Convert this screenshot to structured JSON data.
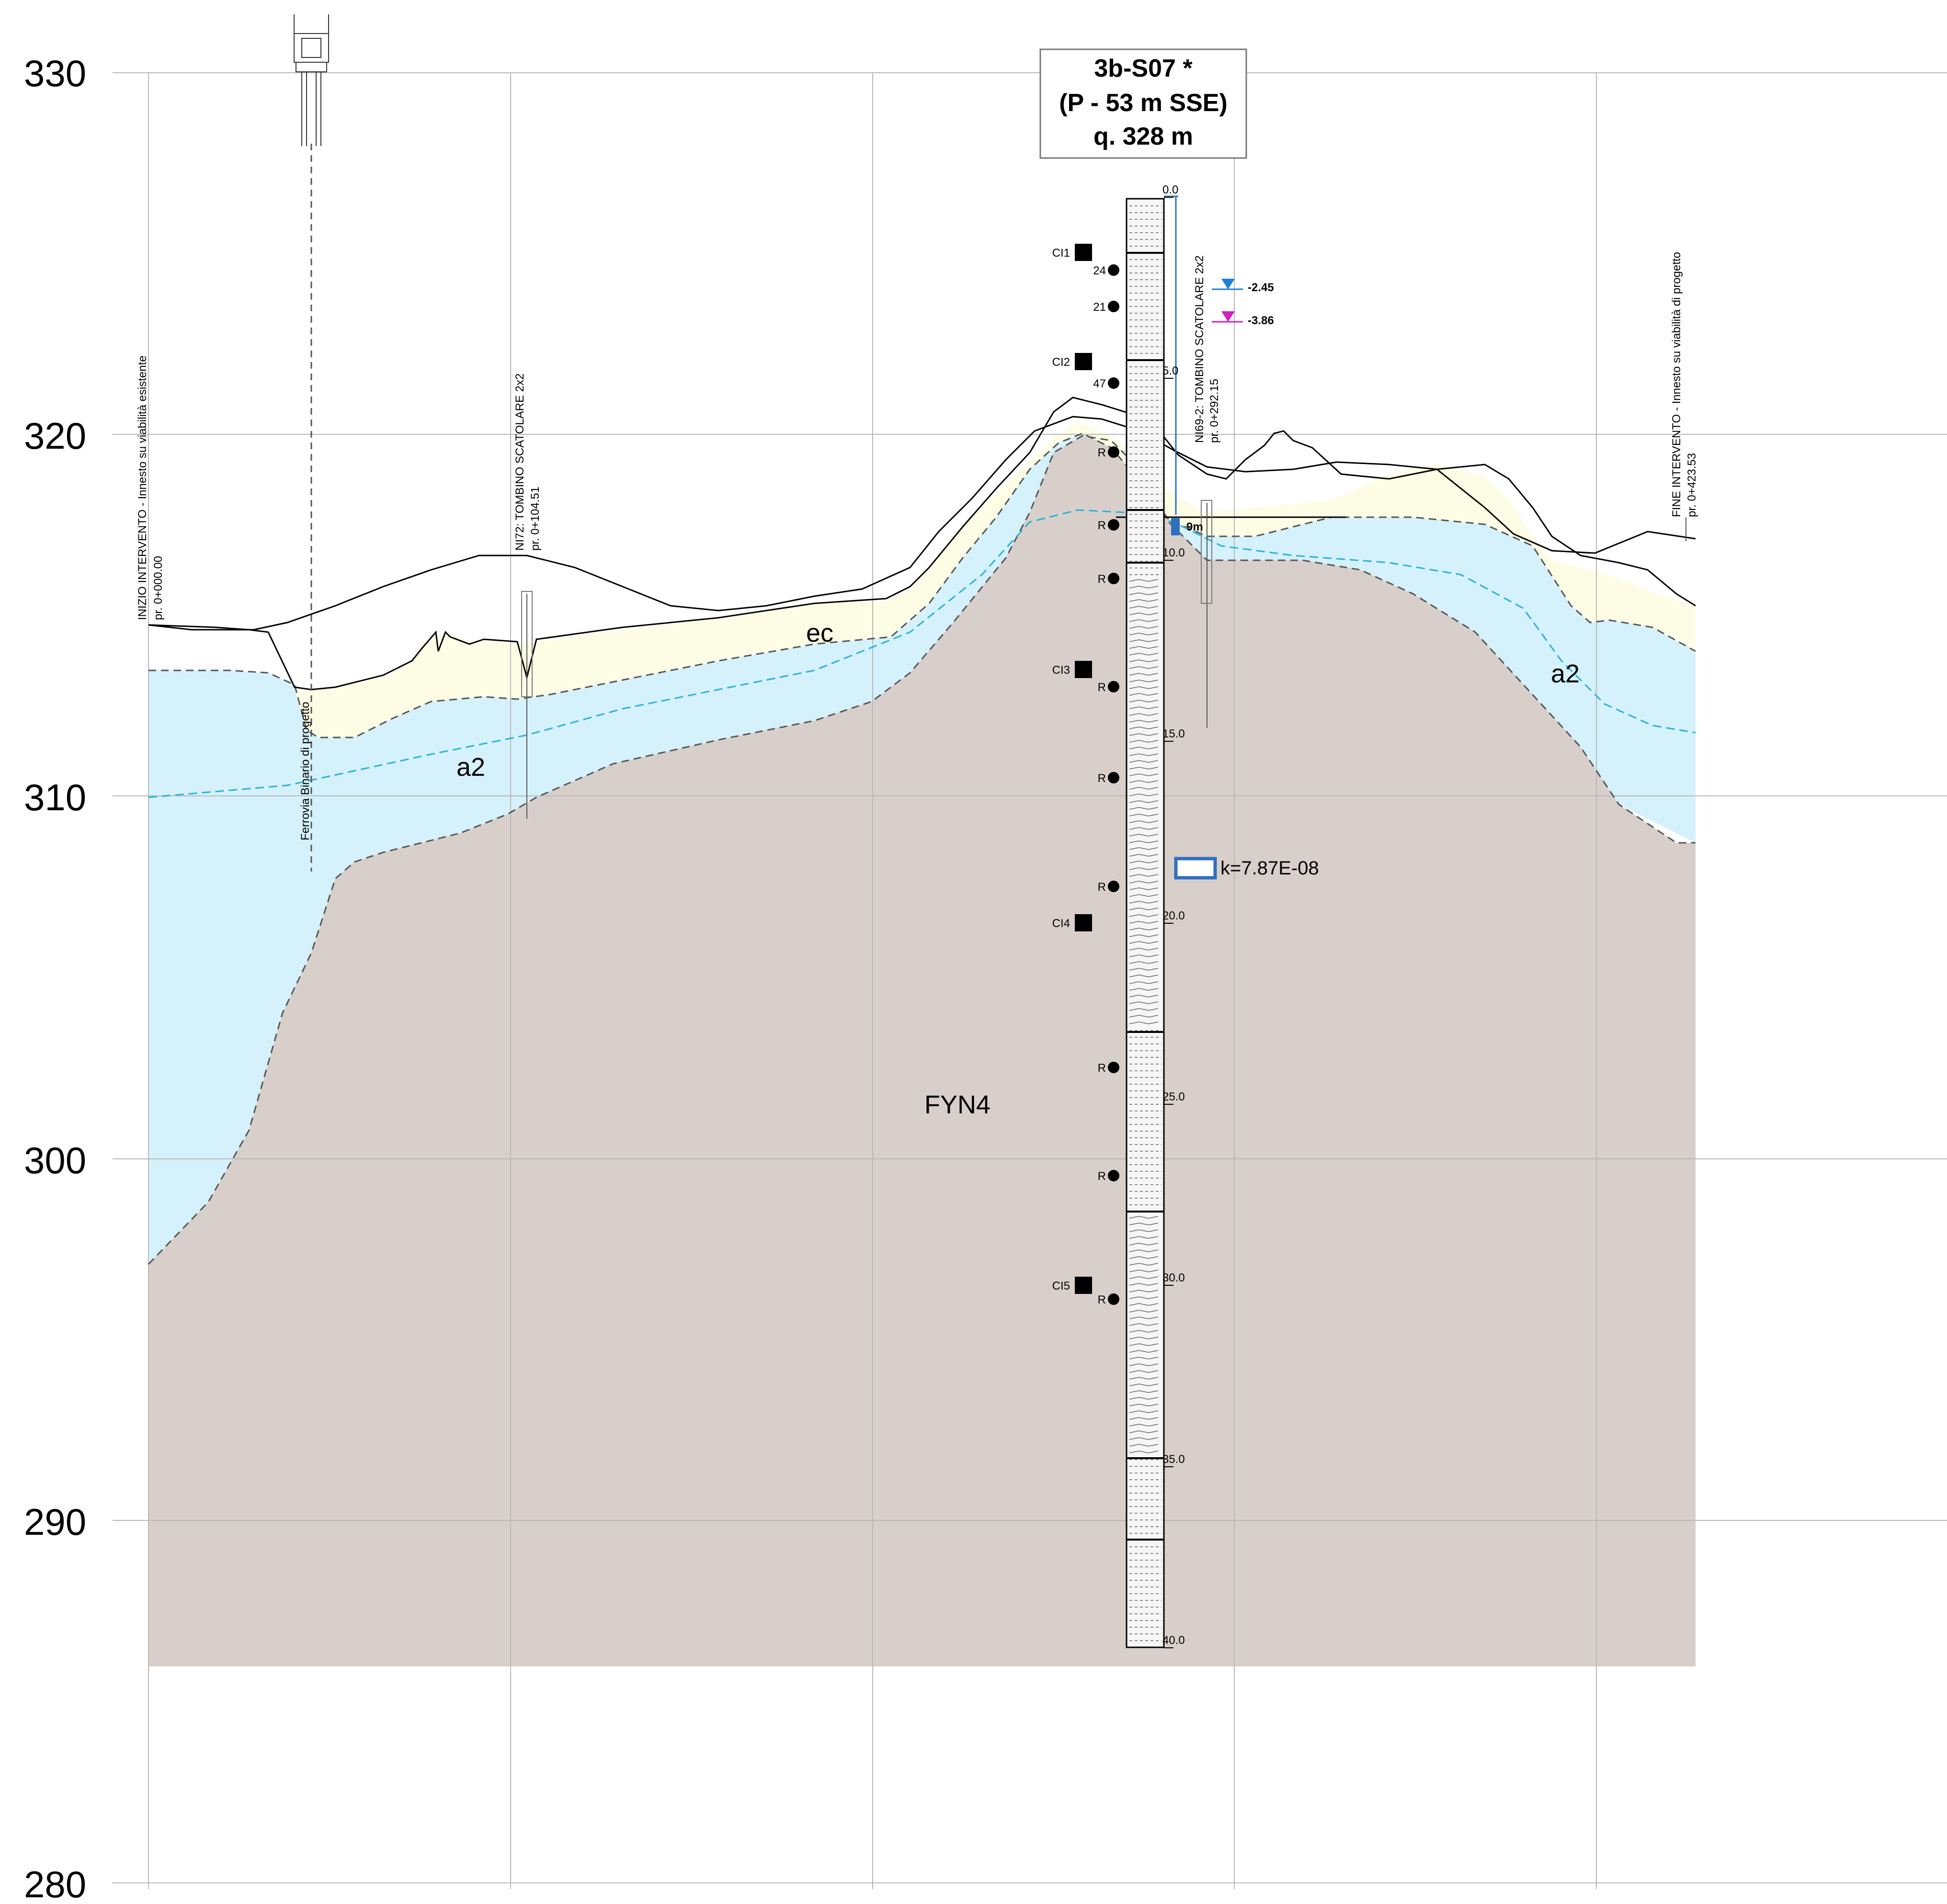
{
  "elevation_axis": {
    "ticks": [
      "330",
      "320",
      "310",
      "300",
      "290",
      "280"
    ]
  },
  "borehole": {
    "title_line1": "3b-S07 *",
    "title_line2": "(P - 53 m SSE)",
    "title_line3": "q. 328 m",
    "depth_labels": [
      "0.0",
      "5.0",
      "10.0",
      "15.0",
      "20.0",
      "25.0",
      "30.0",
      "35.0",
      "40.0"
    ],
    "samples": [
      "CI1",
      "CI2",
      "CI3",
      "CI4",
      "CI5"
    ],
    "spt_values": [
      "24",
      "21",
      "47",
      "R",
      "R",
      "R",
      "R",
      "R",
      "R",
      "R",
      "R",
      "R"
    ],
    "water_level_1": "-2.45",
    "water_level_2": "-3.86",
    "piezometer_label": "9m",
    "permeability": "k=7.87E-08"
  },
  "markers": {
    "start_line1": "INIZIO INTERVENTO - Innesto su viabilità esistente",
    "start_line2": "pr. 0+000.00",
    "railway": "Ferrovia Binario di progetto",
    "culvert1_line1": "NI72: TOMBINO SCATOLARE 2x2",
    "culvert1_line2": "pr. 0+104.51",
    "culvert2_line1": "NI69-2: TOMBINO SCATOLARE 2x2",
    "culvert2_line2": "pr. 0+292.15",
    "end_line1": "FINE INTERVENTO - Innesto su viabilità di progetto",
    "end_line2": "pr. 0+423.53"
  },
  "units": {
    "ec": "ec",
    "a2_left": "a2",
    "a2_right": "a2",
    "fyn4": "FYN4"
  },
  "colors": {
    "fyn4": "#d8cfcb",
    "a2": "#d5f1fb",
    "ec": "#fdfde6",
    "water_blue": "#1e7fd6",
    "water_magenta": "#d020c0",
    "phreatic": "#27b1d6",
    "permeability_box": "#2f6fbf"
  }
}
